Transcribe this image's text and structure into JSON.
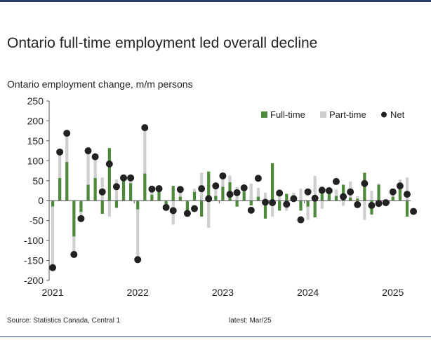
{
  "title": "Ontario full-time employment led overall decline",
  "footer": {
    "source": "Source: Statistics Canada, Central 1",
    "latest": "latest: Mar/25"
  },
  "colors": {
    "full_time": "#4f8a3c",
    "part_time": "#cfcfcf",
    "net": "#222222",
    "header_rule": "#2b3d6b"
  },
  "chart_data": {
    "type": "bar",
    "subtitle": "Ontario employment change, m/m persons",
    "ylim": [
      -200,
      250
    ],
    "y_ticks": [
      "250",
      "200",
      "150",
      "100",
      "50",
      "0",
      "-50",
      "-100",
      "-150",
      "-200"
    ],
    "x_ticks": [
      "2021",
      "2022",
      "2023",
      "2024",
      "2025"
    ],
    "legend_position": "top-right",
    "grid": false,
    "categories": [
      "Jan/21",
      "Feb/21",
      "Mar/21",
      "Apr/21",
      "May/21",
      "Jun/21",
      "Jul/21",
      "Aug/21",
      "Sep/21",
      "Oct/21",
      "Nov/21",
      "Dec/21",
      "Jan/22",
      "Feb/22",
      "Mar/22",
      "Apr/22",
      "May/22",
      "Jun/22",
      "Jul/22",
      "Aug/22",
      "Sep/22",
      "Oct/22",
      "Nov/22",
      "Dec/22",
      "Jan/23",
      "Feb/23",
      "Mar/23",
      "Apr/23",
      "May/23",
      "Jun/23",
      "Jul/23",
      "Aug/23",
      "Sep/23",
      "Oct/23",
      "Nov/23",
      "Dec/23",
      "Jan/24",
      "Feb/24",
      "Mar/24",
      "Apr/24",
      "May/24",
      "Jun/24",
      "Jul/24",
      "Aug/24",
      "Sep/24",
      "Oct/24",
      "Nov/24",
      "Dec/24",
      "Jan/25",
      "Feb/25",
      "Mar/25"
    ],
    "series": [
      {
        "name": "Full-time",
        "values": [
          -15,
          57,
          97,
          -90,
          -28,
          40,
          57,
          -33,
          132,
          -18,
          57,
          44,
          -22,
          68,
          15,
          22,
          -10,
          37,
          10,
          -30,
          22,
          -40,
          73,
          12,
          35,
          46,
          -15,
          23,
          -12,
          10,
          -45,
          94,
          -25,
          17,
          5,
          -25,
          -15,
          -42,
          35,
          20,
          12,
          40,
          8,
          5,
          70,
          -35,
          40,
          -10,
          10,
          45,
          -40
        ]
      },
      {
        "name": "Part-time",
        "values": [
          -155,
          65,
          72,
          -45,
          -18,
          85,
          52,
          58,
          -40,
          53,
          0,
          14,
          -127,
          115,
          15,
          10,
          -8,
          -60,
          18,
          -5,
          8,
          70,
          -68,
          25,
          27,
          17,
          34,
          10,
          43,
          22,
          20,
          -40,
          25,
          -25,
          15,
          30,
          -33,
          62,
          -20,
          5,
          16,
          -13,
          40,
          6,
          -48,
          25,
          3,
          3,
          13,
          8,
          58
        ]
      },
      {
        "name": "Net",
        "values": [
          -168,
          122,
          169,
          -135,
          -45,
          125,
          110,
          22,
          92,
          35,
          57,
          57,
          -148,
          183,
          29,
          30,
          -17,
          -25,
          28,
          -32,
          -20,
          30,
          5,
          37,
          62,
          16,
          20,
          32,
          -24,
          56,
          -4,
          -5,
          19,
          -9,
          5,
          -48,
          22,
          6,
          26,
          25,
          48,
          10,
          22,
          -10,
          43,
          -12,
          -7,
          -5,
          22,
          37,
          16
        ]
      }
    ],
    "net_last_point": -27
  }
}
